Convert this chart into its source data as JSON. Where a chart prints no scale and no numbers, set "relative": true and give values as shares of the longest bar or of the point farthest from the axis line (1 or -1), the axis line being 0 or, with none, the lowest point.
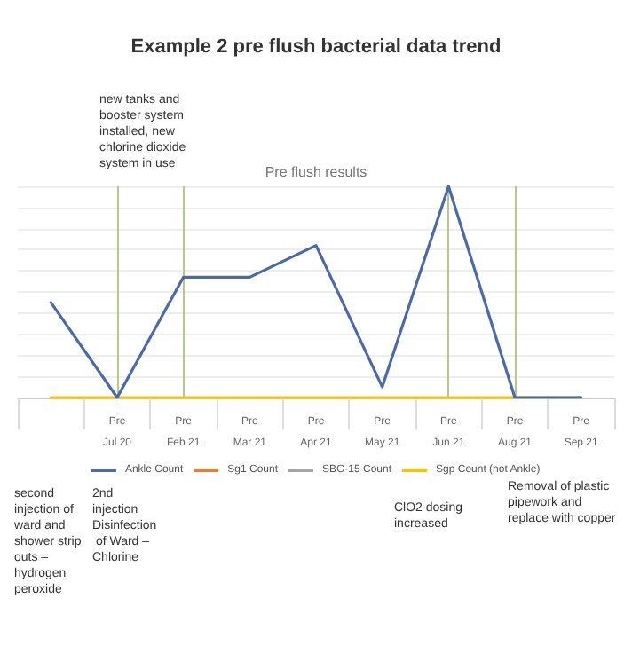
{
  "chart_data": {
    "type": "line",
    "title": "Example 2 pre flush bacterial data trend",
    "subtitle": "Pre flush results",
    "relative": true,
    "categories": [
      null,
      "Pre\nJul 20",
      "Pre\nFeb 21",
      "Pre\nMar 21",
      "Pre\nApr 21",
      "Pre\nMay 21",
      "Pre\nJun 21",
      "Pre\nAug 21",
      "Pre\nSep 21"
    ],
    "series": [
      {
        "name": "Ankle Count",
        "color": "#4a6aa8",
        "values": [
          0.45,
          0,
          0.57,
          0.57,
          0.72,
          0.05,
          1,
          0,
          0
        ]
      },
      {
        "name": "Sg1 Count",
        "color": "#ed7d31",
        "values": [
          null,
          null,
          null,
          null,
          null,
          null,
          null,
          null,
          null
        ]
      },
      {
        "name": "SBG-15 Count",
        "color": "#a5a5a5",
        "values": [
          null,
          null,
          null,
          null,
          null,
          null,
          null,
          null,
          null
        ]
      },
      {
        "name": "Sgp Count (not Ankle)",
        "color": "#ffc000",
        "values": [
          0,
          0,
          0,
          0,
          0,
          0,
          0,
          0,
          0
        ]
      }
    ],
    "ref_lines": [
      {
        "axis": "x",
        "value": "Pre\nJul 20",
        "color": "#b5c98a"
      },
      {
        "axis": "x",
        "value": "Pre\nFeb 21",
        "color": "#b5c98a"
      },
      {
        "axis": "x",
        "value": "Pre\nJun 21",
        "color": "#b5c98a"
      },
      {
        "axis": "x",
        "value": "Pre\nAug 21",
        "color": "#b5c98a"
      }
    ],
    "annotations": [
      "second injection of ward and shower strip outs – hydrogen peroxide",
      "new tanks and booster system installed, new chlorine dioxide system in use",
      "2nd injection Disinfection of Ward – Chlorine",
      "ClO2 dosing increased",
      "Removal of plastic pipework and replace with copper"
    ],
    "grid": "y",
    "legend": "bottom",
    "marker": "none",
    "line_style": "solid"
  }
}
